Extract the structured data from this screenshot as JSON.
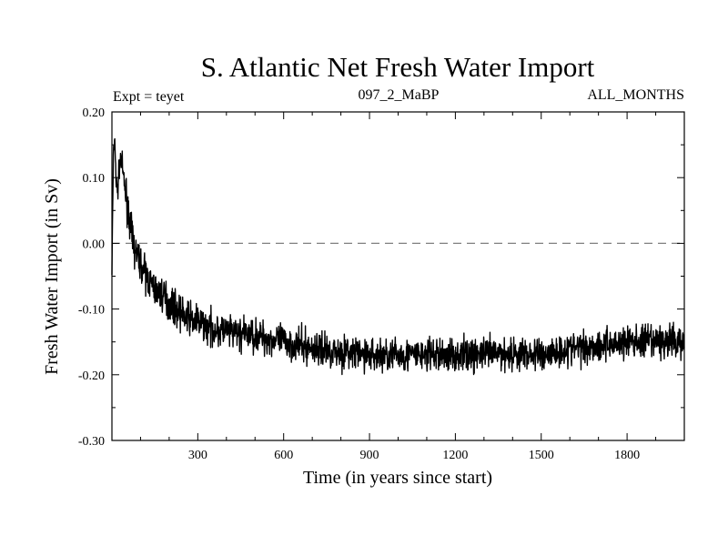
{
  "chart_data": {
    "type": "line",
    "title": "S. Atlantic Net Fresh Water Import",
    "experiment_label": "Expt = teyet",
    "run_label": "097_2_MaBP",
    "period_label": "ALL_MONTHS",
    "xlabel": "Time (in years since start)",
    "ylabel": "Fresh Water Import (in Sv)",
    "xlim": [
      0,
      2000
    ],
    "ylim": [
      -0.3,
      0.2
    ],
    "xticks": [
      300,
      600,
      900,
      1200,
      1500,
      1800
    ],
    "xtick_labels": [
      "300",
      "600",
      "900",
      "1200",
      "1500",
      "1800"
    ],
    "yticks": [
      -0.3,
      -0.2,
      -0.1,
      0.0,
      0.1,
      0.2
    ],
    "ytick_labels": [
      "-0.30",
      "-0.20",
      "-0.10",
      "0.00",
      "0.10",
      "0.20"
    ],
    "reference_line": {
      "y": 0.0,
      "style": "dashed",
      "color": "#808080"
    },
    "series": [
      {
        "name": "Net fresh water import",
        "color": "#000000",
        "x": [
          0,
          5,
          10,
          15,
          20,
          25,
          30,
          35,
          40,
          50,
          60,
          70,
          80,
          100,
          120,
          150,
          180,
          200,
          250,
          300,
          350,
          400,
          500,
          600,
          700,
          800,
          900,
          1000,
          1100,
          1200,
          1300,
          1400,
          1500,
          1600,
          1700,
          1800,
          1900,
          2000
        ],
        "y": [
          -0.04,
          0.13,
          0.16,
          0.09,
          0.08,
          0.11,
          0.13,
          0.12,
          0.1,
          0.07,
          0.04,
          0.01,
          -0.01,
          -0.03,
          -0.05,
          -0.07,
          -0.08,
          -0.09,
          -0.11,
          -0.12,
          -0.13,
          -0.135,
          -0.14,
          -0.15,
          -0.16,
          -0.165,
          -0.17,
          -0.17,
          -0.17,
          -0.17,
          -0.168,
          -0.168,
          -0.17,
          -0.16,
          -0.155,
          -0.15,
          -0.15,
          -0.15
        ]
      }
    ]
  }
}
